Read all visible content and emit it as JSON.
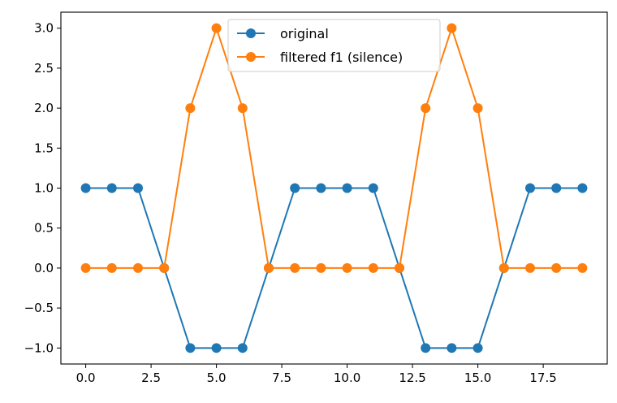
{
  "chart_data": {
    "type": "line",
    "title": "",
    "xlabel": "",
    "ylabel": "",
    "x": [
      0,
      1,
      2,
      3,
      4,
      5,
      6,
      7,
      8,
      9,
      10,
      11,
      12,
      13,
      14,
      15,
      16,
      17,
      18,
      19
    ],
    "xlim": [
      -0.95,
      19.95
    ],
    "ylim": [
      -1.2,
      3.2
    ],
    "xticks": [
      0.0,
      2.5,
      5.0,
      7.5,
      10.0,
      12.5,
      15.0,
      17.5
    ],
    "xtick_labels": [
      "0.0",
      "2.5",
      "5.0",
      "7.5",
      "10.0",
      "12.5",
      "15.0",
      "17.5"
    ],
    "yticks": [
      -1.0,
      -0.5,
      0.0,
      0.5,
      1.0,
      1.5,
      2.0,
      2.5,
      3.0
    ],
    "ytick_labels": [
      "−1.0",
      "−0.5",
      "0.0",
      "0.5",
      "1.0",
      "1.5",
      "2.0",
      "2.5",
      "3.0"
    ],
    "grid": false,
    "legend_position": "top-center",
    "series": [
      {
        "name": "original",
        "color": "#1f77b4",
        "marker": "circle",
        "values": [
          1,
          1,
          1,
          0,
          -1,
          -1,
          -1,
          0,
          1,
          1,
          1,
          1,
          0,
          -1,
          -1,
          -1,
          0,
          1,
          1,
          1
        ]
      },
      {
        "name": "filtered f1 (silence)",
        "color": "#ff7f0e",
        "marker": "circle",
        "values": [
          0,
          0,
          0,
          0,
          2,
          3,
          2,
          0,
          0,
          0,
          0,
          0,
          0,
          2,
          3,
          2,
          0,
          0,
          0,
          0
        ]
      }
    ]
  }
}
